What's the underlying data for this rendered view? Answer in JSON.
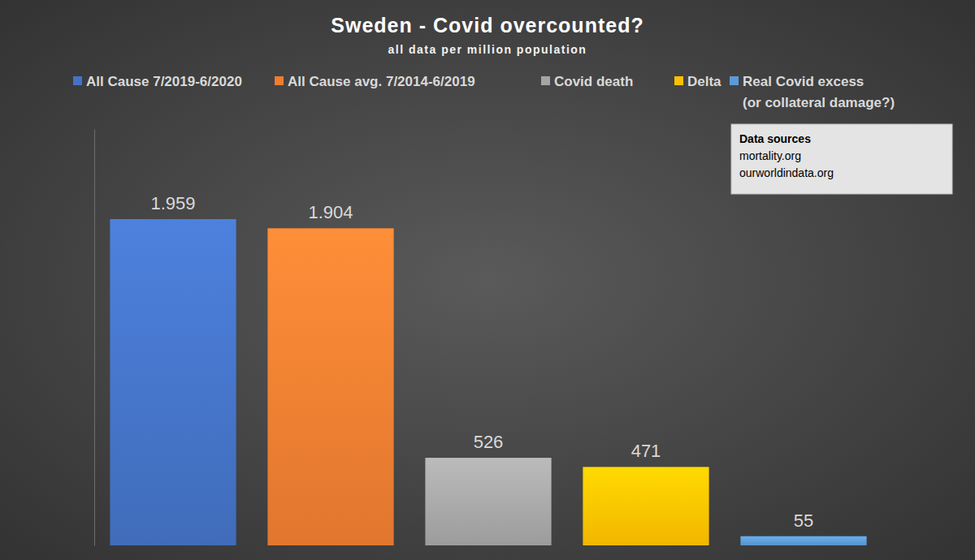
{
  "chart_data": {
    "type": "bar",
    "title": "Sweden - Covid overcounted?",
    "subtitle": "all data per million population",
    "categories": [
      "All Cause 7/2019-6/2020",
      "All Cause avg. 7/2014-6/2019",
      "Covid death",
      "Delta",
      "Real Covid excess\n(or collateral damage?)"
    ],
    "values": [
      1959,
      1904,
      526,
      471,
      55
    ],
    "value_labels": [
      "1.959",
      "1.904",
      "526",
      "471",
      "55"
    ],
    "colors": [
      "#4472c4",
      "#ed7d31",
      "#a5a5a5",
      "#ffc000",
      "#5b9bd5"
    ],
    "ylim": [
      0,
      2500
    ],
    "yticks": [],
    "grid": false,
    "legend": "top",
    "data_labels": true,
    "tick_labels": false,
    "annotations": [
      "Data sources",
      "mortality.org",
      "ourworldindata.org"
    ]
  }
}
